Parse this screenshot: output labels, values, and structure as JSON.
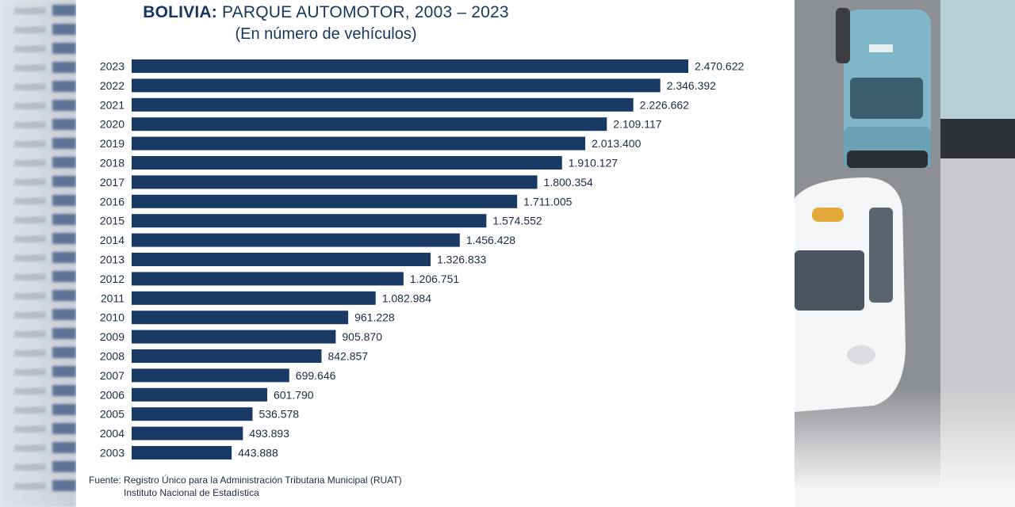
{
  "chart_data": {
    "type": "bar",
    "orientation": "horizontal",
    "title_bold": "BOLIVIA:",
    "title_rest": " PARQUE AUTOMOTOR, 2003 – 2023",
    "subtitle": "(En número de vehículos)",
    "categories": [
      "2023",
      "2022",
      "2021",
      "2020",
      "2019",
      "2018",
      "2017",
      "2016",
      "2015",
      "2014",
      "2013",
      "2012",
      "2011",
      "2010",
      "2009",
      "2008",
      "2007",
      "2006",
      "2005",
      "2004",
      "2003"
    ],
    "values": [
      2470622,
      2346392,
      2226662,
      2109117,
      2013400,
      1910127,
      1800354,
      1711005,
      1574552,
      1456428,
      1326833,
      1206751,
      1082984,
      961228,
      905870,
      842857,
      699646,
      601790,
      536578,
      493893,
      443888
    ],
    "value_labels": [
      "2.470.622",
      "2.346.392",
      "2.226.662",
      "2.109.117",
      "2.013.400",
      "1.910.127",
      "1.800.354",
      "1.711.005",
      "1.574.552",
      "1.456.428",
      "1.326.833",
      "1.206.751",
      "1.082.984",
      "961.228",
      "905.870",
      "842.857",
      "699.646",
      "601.790",
      "536.578",
      "493.893",
      "443.888"
    ],
    "xlim": [
      0,
      2470622
    ],
    "bar_color": "#1a3a66",
    "grid": false,
    "legend": "none"
  },
  "source": {
    "line1": "Fuente: Registro Único para la Administración Tributaria Municipal (RUAT)",
    "line2": "Instituto Nacional de Estadística"
  }
}
